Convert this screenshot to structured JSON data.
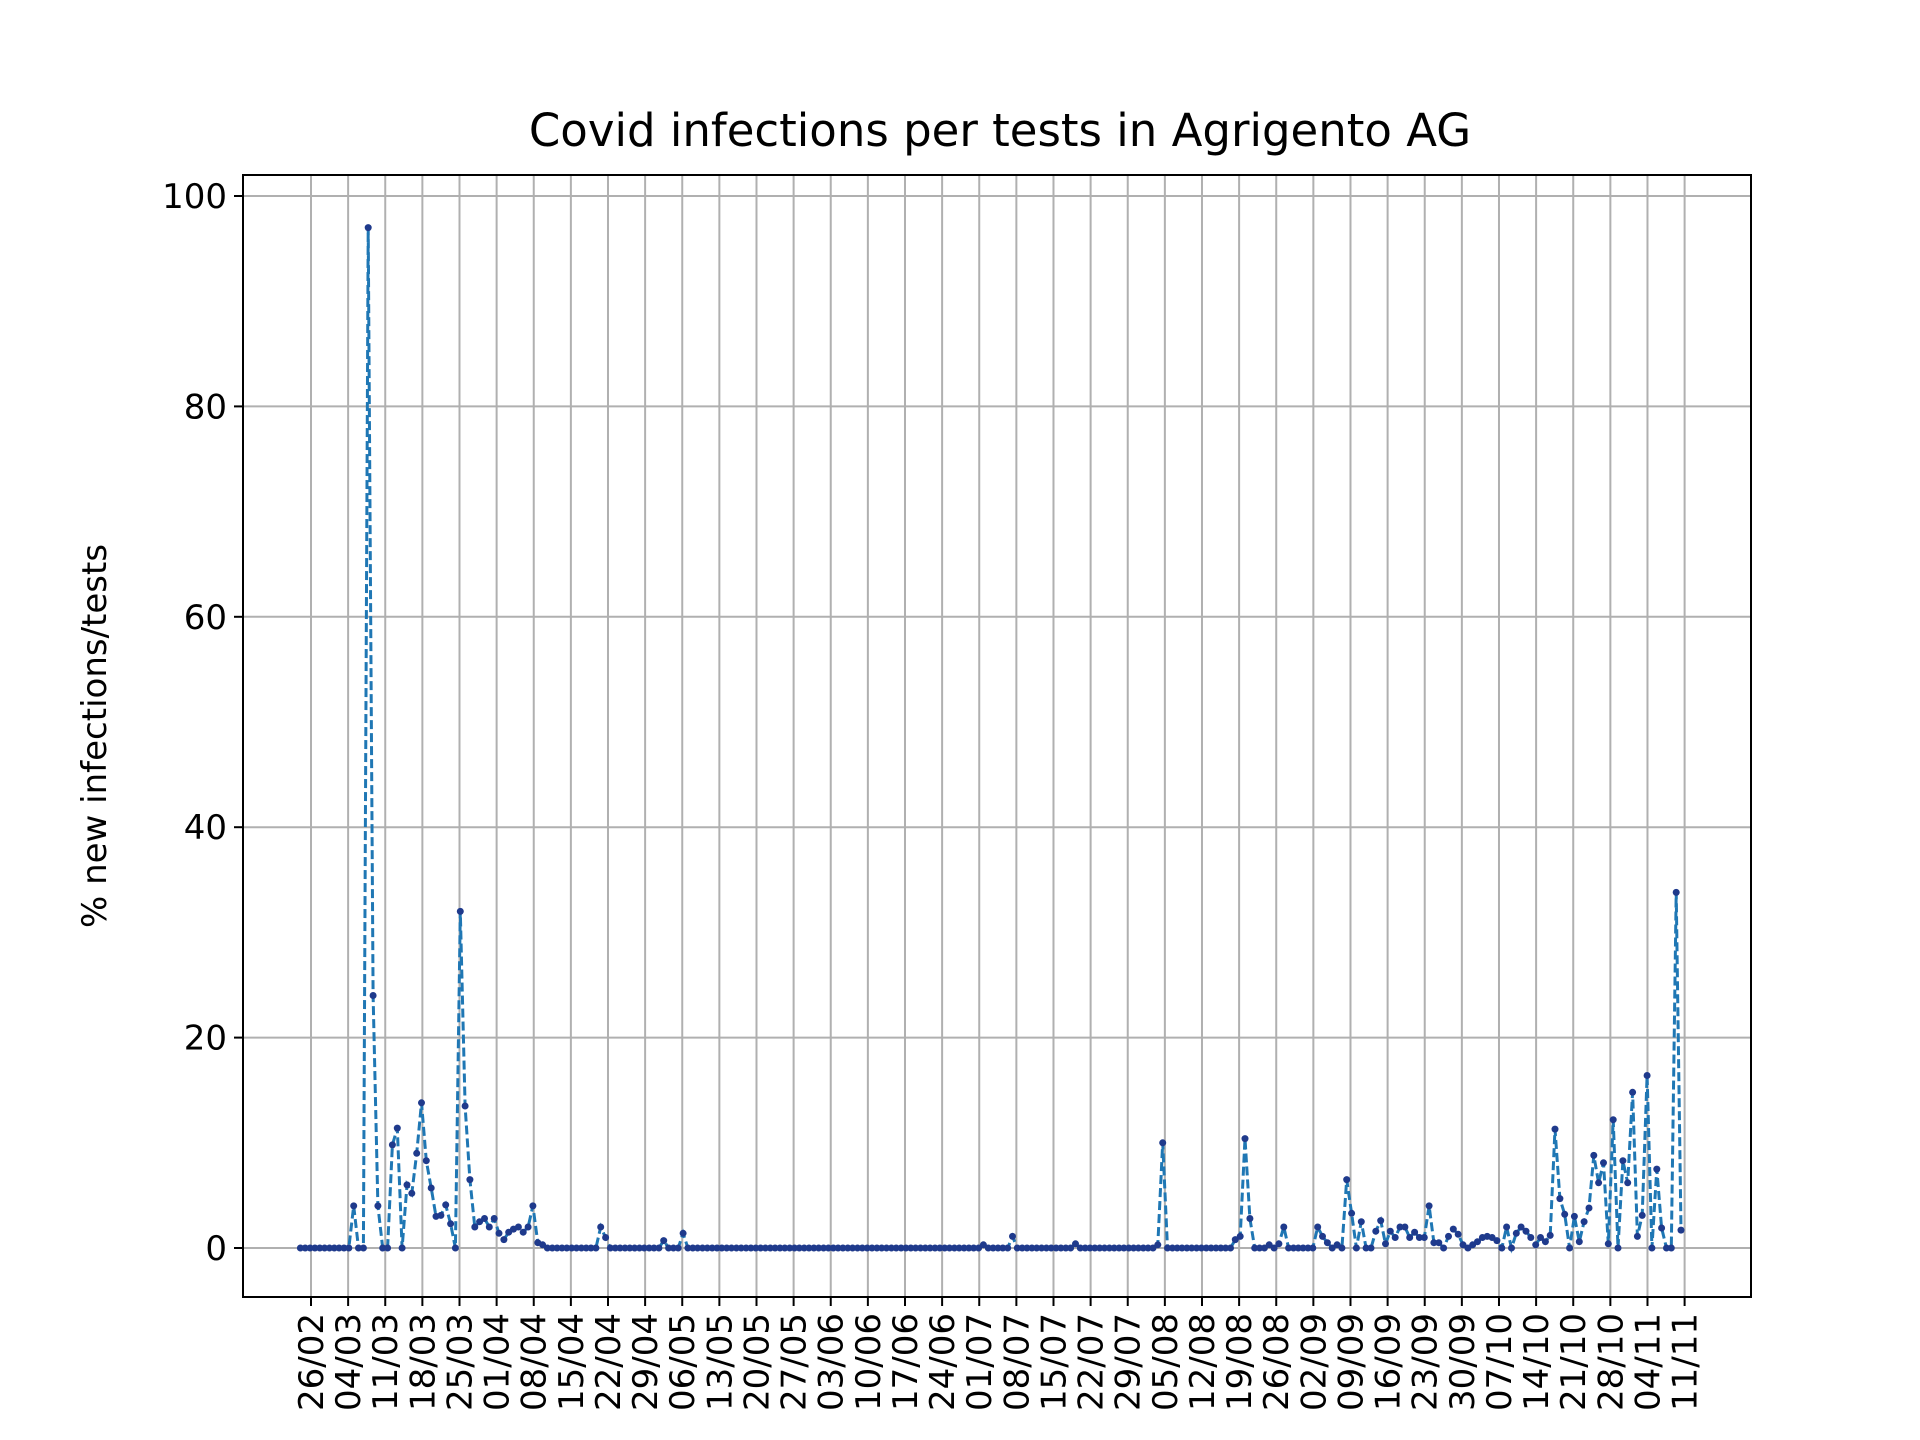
{
  "chart_data": {
    "type": "line",
    "title": "Covid infections per tests in Agrigento AG",
    "xlabel": "",
    "ylabel": "% new infections/tests",
    "ylim": [
      -5,
      102
    ],
    "yticks": [
      0,
      20,
      40,
      60,
      80,
      100
    ],
    "grid": true,
    "line_color": "#1f77b4",
    "marker_color": "#1f3a8c",
    "line_style": "dashed",
    "x_start": "24/02",
    "x_end": "12/11",
    "xtick_labels": [
      "26/02",
      "04/03",
      "11/03",
      "18/03",
      "25/03",
      "01/04",
      "08/04",
      "15/04",
      "22/04",
      "29/04",
      "06/05",
      "13/05",
      "20/05",
      "27/05",
      "03/06",
      "10/06",
      "17/06",
      "24/06",
      "01/07",
      "08/07",
      "15/07",
      "22/07",
      "29/07",
      "05/08",
      "12/08",
      "19/08",
      "26/08",
      "02/09",
      "09/09",
      "16/09",
      "23/09",
      "30/09",
      "07/10",
      "14/10",
      "21/10",
      "28/10",
      "04/11",
      "11/11"
    ],
    "series": [
      {
        "name": "",
        "values": [
          0,
          0,
          0,
          0,
          0,
          0,
          0,
          0,
          0,
          0,
          0,
          4,
          0,
          0,
          97,
          24,
          4,
          0,
          0,
          9.8,
          11.4,
          0,
          6,
          5.2,
          9,
          13.8,
          8.3,
          5.7,
          3,
          3.1,
          4.1,
          2.3,
          0,
          32,
          13.5,
          6.5,
          2,
          2.5,
          2.8,
          2,
          2.8,
          1.4,
          0.8,
          1.5,
          1.8,
          2,
          1.5,
          2,
          4,
          0.5,
          0.3,
          0,
          0,
          0,
          0,
          0,
          0,
          0,
          0,
          0,
          0,
          0,
          2,
          1,
          0,
          0,
          0,
          0,
          0,
          0,
          0,
          0,
          0,
          0,
          0,
          0.7,
          0,
          0,
          0,
          1.4,
          0,
          0,
          0,
          0,
          0,
          0,
          0,
          0,
          0,
          0,
          0,
          0,
          0,
          0,
          0,
          0,
          0,
          0,
          0,
          0,
          0,
          0,
          0,
          0,
          0,
          0,
          0,
          0,
          0,
          0,
          0,
          0,
          0,
          0,
          0,
          0,
          0,
          0,
          0,
          0,
          0,
          0,
          0,
          0,
          0,
          0,
          0,
          0,
          0,
          0,
          0,
          0,
          0,
          0,
          0,
          0,
          0,
          0,
          0,
          0,
          0,
          0.3,
          0,
          0,
          0,
          0,
          0,
          1.1,
          0,
          0,
          0,
          0,
          0,
          0,
          0,
          0,
          0,
          0,
          0,
          0,
          0.4,
          0,
          0,
          0,
          0,
          0,
          0,
          0,
          0,
          0,
          0,
          0,
          0,
          0,
          0,
          0,
          0,
          0.3,
          10,
          0,
          0,
          0,
          0,
          0,
          0,
          0,
          0,
          0,
          0,
          0,
          0,
          0,
          0,
          0.8,
          1.1,
          10.4,
          2.8,
          0,
          0,
          0,
          0.3,
          0,
          0.4,
          2,
          0,
          0,
          0,
          0,
          0,
          0,
          2,
          1.1,
          0.5,
          0,
          0.3,
          0,
          6.5,
          3.3,
          0,
          2.5,
          0,
          0,
          1.6,
          2.6,
          0.4,
          1.6,
          1,
          2,
          2,
          1,
          1.5,
          1,
          1,
          4,
          0.5,
          0.5,
          0,
          1.1,
          1.8,
          1.3,
          0.3,
          0,
          0.3,
          0.6,
          1,
          1.1,
          1,
          0.7,
          0,
          2,
          0,
          1.4,
          2,
          1.6,
          1,
          0.3,
          1,
          0.6,
          1.2,
          11.3,
          4.7,
          3.2,
          0,
          3,
          0.6,
          2.5,
          3.8,
          8.8,
          6.2,
          8.1,
          0.4,
          12.2,
          0,
          8.3,
          6.2,
          14.8,
          1.1,
          3.1,
          16.4,
          0,
          7.5,
          1.9,
          0,
          0,
          33.8,
          1.7
        ]
      }
    ]
  }
}
